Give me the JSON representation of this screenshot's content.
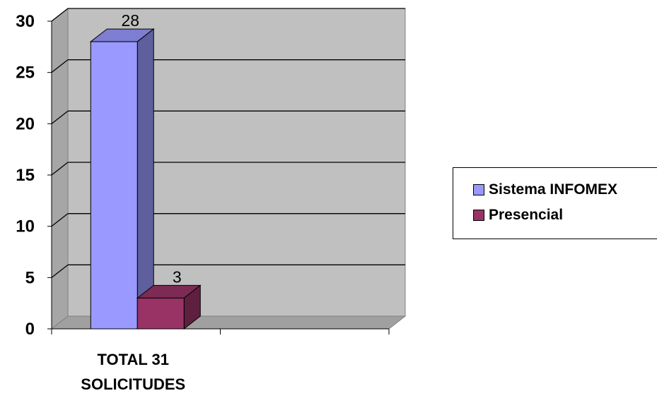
{
  "chart_data": {
    "type": "bar",
    "categories": [
      "TOTAL 31 SOLICITUDES"
    ],
    "category_lines": [
      "TOTAL 31",
      "SOLICITUDES"
    ],
    "series": [
      {
        "name": "Sistema INFOMEX",
        "values": [
          28
        ],
        "color": "#9999ff"
      },
      {
        "name": "Presencial",
        "values": [
          3
        ],
        "color": "#993366"
      }
    ],
    "data_labels": [
      "28",
      "3"
    ],
    "title": "",
    "xlabel": "",
    "ylabel": "",
    "ylim": [
      0,
      30
    ],
    "yticks": [
      0,
      5,
      10,
      15,
      20,
      25,
      30
    ],
    "grid": true,
    "three_d": true,
    "plot_background": "#c0c0c0",
    "legend": {
      "placement": "right"
    }
  }
}
